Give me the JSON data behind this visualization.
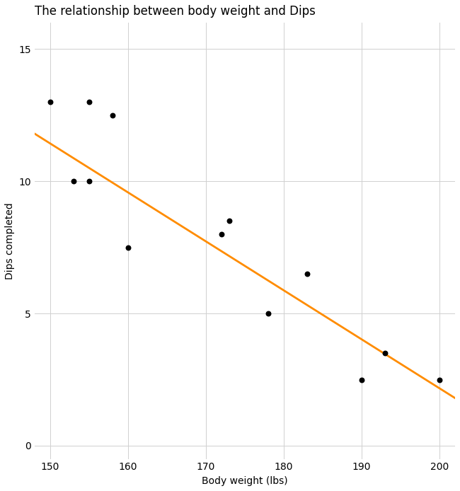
{
  "title": "The relationship between body weight and Dips",
  "xlabel": "Body weight (lbs)",
  "ylabel": "Dips completed",
  "x": [
    150,
    153,
    155,
    155,
    158,
    160,
    172,
    173,
    178,
    183,
    190,
    193,
    200
  ],
  "y": [
    13,
    10,
    10,
    13,
    12.5,
    7.5,
    8,
    8.5,
    5,
    6.5,
    2.5,
    3.5,
    2.5
  ],
  "xlim": [
    148,
    202
  ],
  "ylim": [
    -0.5,
    16
  ],
  "xticks": [
    150,
    160,
    170,
    180,
    190,
    200
  ],
  "yticks": [
    0,
    5,
    10,
    15
  ],
  "scatter_color": "#000000",
  "line_color": "#FF8C00",
  "line_width": 2.0,
  "marker_size": 22,
  "background_color": "#ffffff",
  "grid_color": "#d0d0d0",
  "title_fontsize": 12,
  "label_fontsize": 10,
  "tick_fontsize": 10,
  "line_x0": 148,
  "line_x1": 202,
  "line_y0": 11.8,
  "line_y1": 1.8
}
